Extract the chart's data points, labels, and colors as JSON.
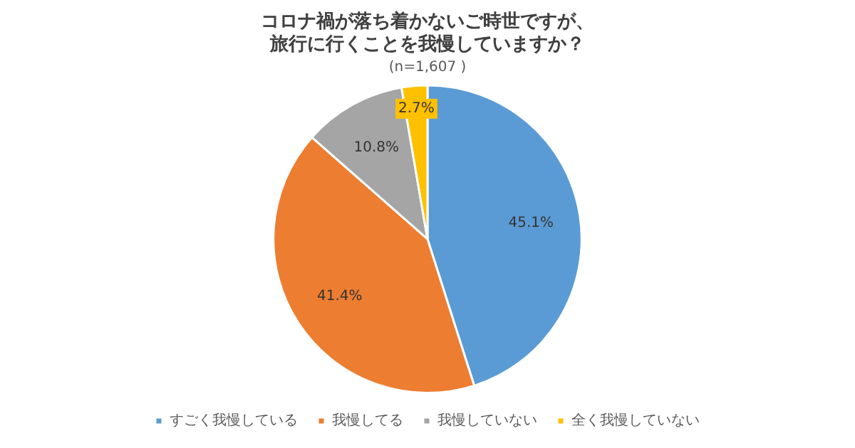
{
  "chart_data": {
    "type": "pie",
    "title": "コロナ禍が落ち着かないご時世ですが、旅行に行くことを我慢していますか？",
    "subtitle": "(n=1,607 )",
    "categories": [
      "すごく我慢している",
      "我慢してる",
      "我慢していない",
      "全く我慢していない"
    ],
    "values": [
      45.1,
      41.4,
      10.8,
      2.7
    ],
    "colors": [
      "#5b9bd5",
      "#ed7d31",
      "#a5a5a5",
      "#ffc000"
    ],
    "value_labels": [
      "45.1%",
      "41.4%",
      "10.8%",
      "2.7%"
    ],
    "legend": "bottom"
  }
}
